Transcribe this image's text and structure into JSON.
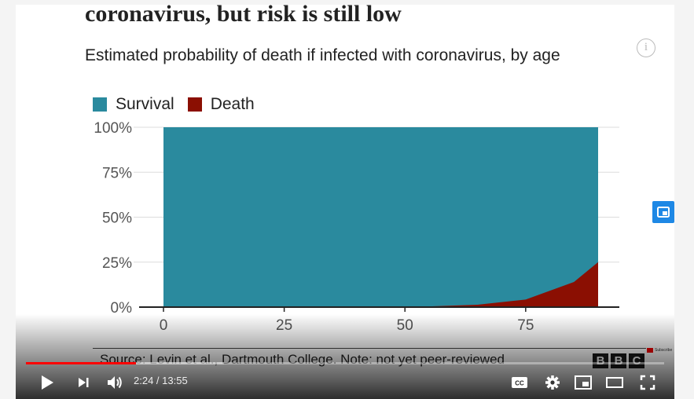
{
  "video": {
    "clipped_title": "coronavirus, but risk is still low",
    "subtitle": "Estimated probability of death if infected with coronavirus, by age",
    "info_label": "i",
    "source": "Source: Levin et al., Dartmouth College. Note: not yet peer-reviewed",
    "brand_letters": [
      "B",
      "B",
      "C"
    ],
    "subscribe_label": "Subscribe"
  },
  "player": {
    "current_time": "2:24",
    "separator": " / ",
    "duration": "13:55",
    "played_fraction": 0.172,
    "buffered_fraction": 0.31,
    "accent_color": "#ff0000"
  },
  "chart_data": {
    "type": "area",
    "legend": [
      {
        "name": "Survival",
        "color": "#2a8a9e"
      },
      {
        "name": "Death",
        "color": "#8b0f02"
      }
    ],
    "y_ticks": [
      "100%",
      "75%",
      "50%",
      "25%",
      "0%"
    ],
    "y_tick_values": [
      100,
      75,
      50,
      25,
      0
    ],
    "x_ticks": [
      "0",
      "25",
      "50",
      "75"
    ],
    "x_tick_values": [
      0,
      25,
      50,
      75
    ],
    "xlim": [
      0,
      90
    ],
    "ylim": [
      0,
      100
    ],
    "series": [
      {
        "name": "Survival",
        "color": "#2a8a9e",
        "x": [
          0,
          90
        ],
        "y": [
          100,
          100
        ]
      },
      {
        "name": "Death",
        "color": "#8b0f02",
        "x": [
          0,
          25,
          45,
          55,
          65,
          75,
          85,
          90
        ],
        "y": [
          0,
          0,
          0.1,
          0.4,
          1.3,
          4.2,
          14,
          25
        ]
      }
    ],
    "grid": true,
    "legend_position": "top-left"
  },
  "icons": {
    "play": "play-icon",
    "next": "next-icon",
    "volume": "volume-icon",
    "captions": "captions-icon",
    "settings": "gear-icon",
    "miniplayer": "miniplayer-icon",
    "theater": "theater-icon",
    "fullscreen": "fullscreen-icon",
    "side": "picture-in-picture-icon"
  },
  "captions_label": "CC"
}
